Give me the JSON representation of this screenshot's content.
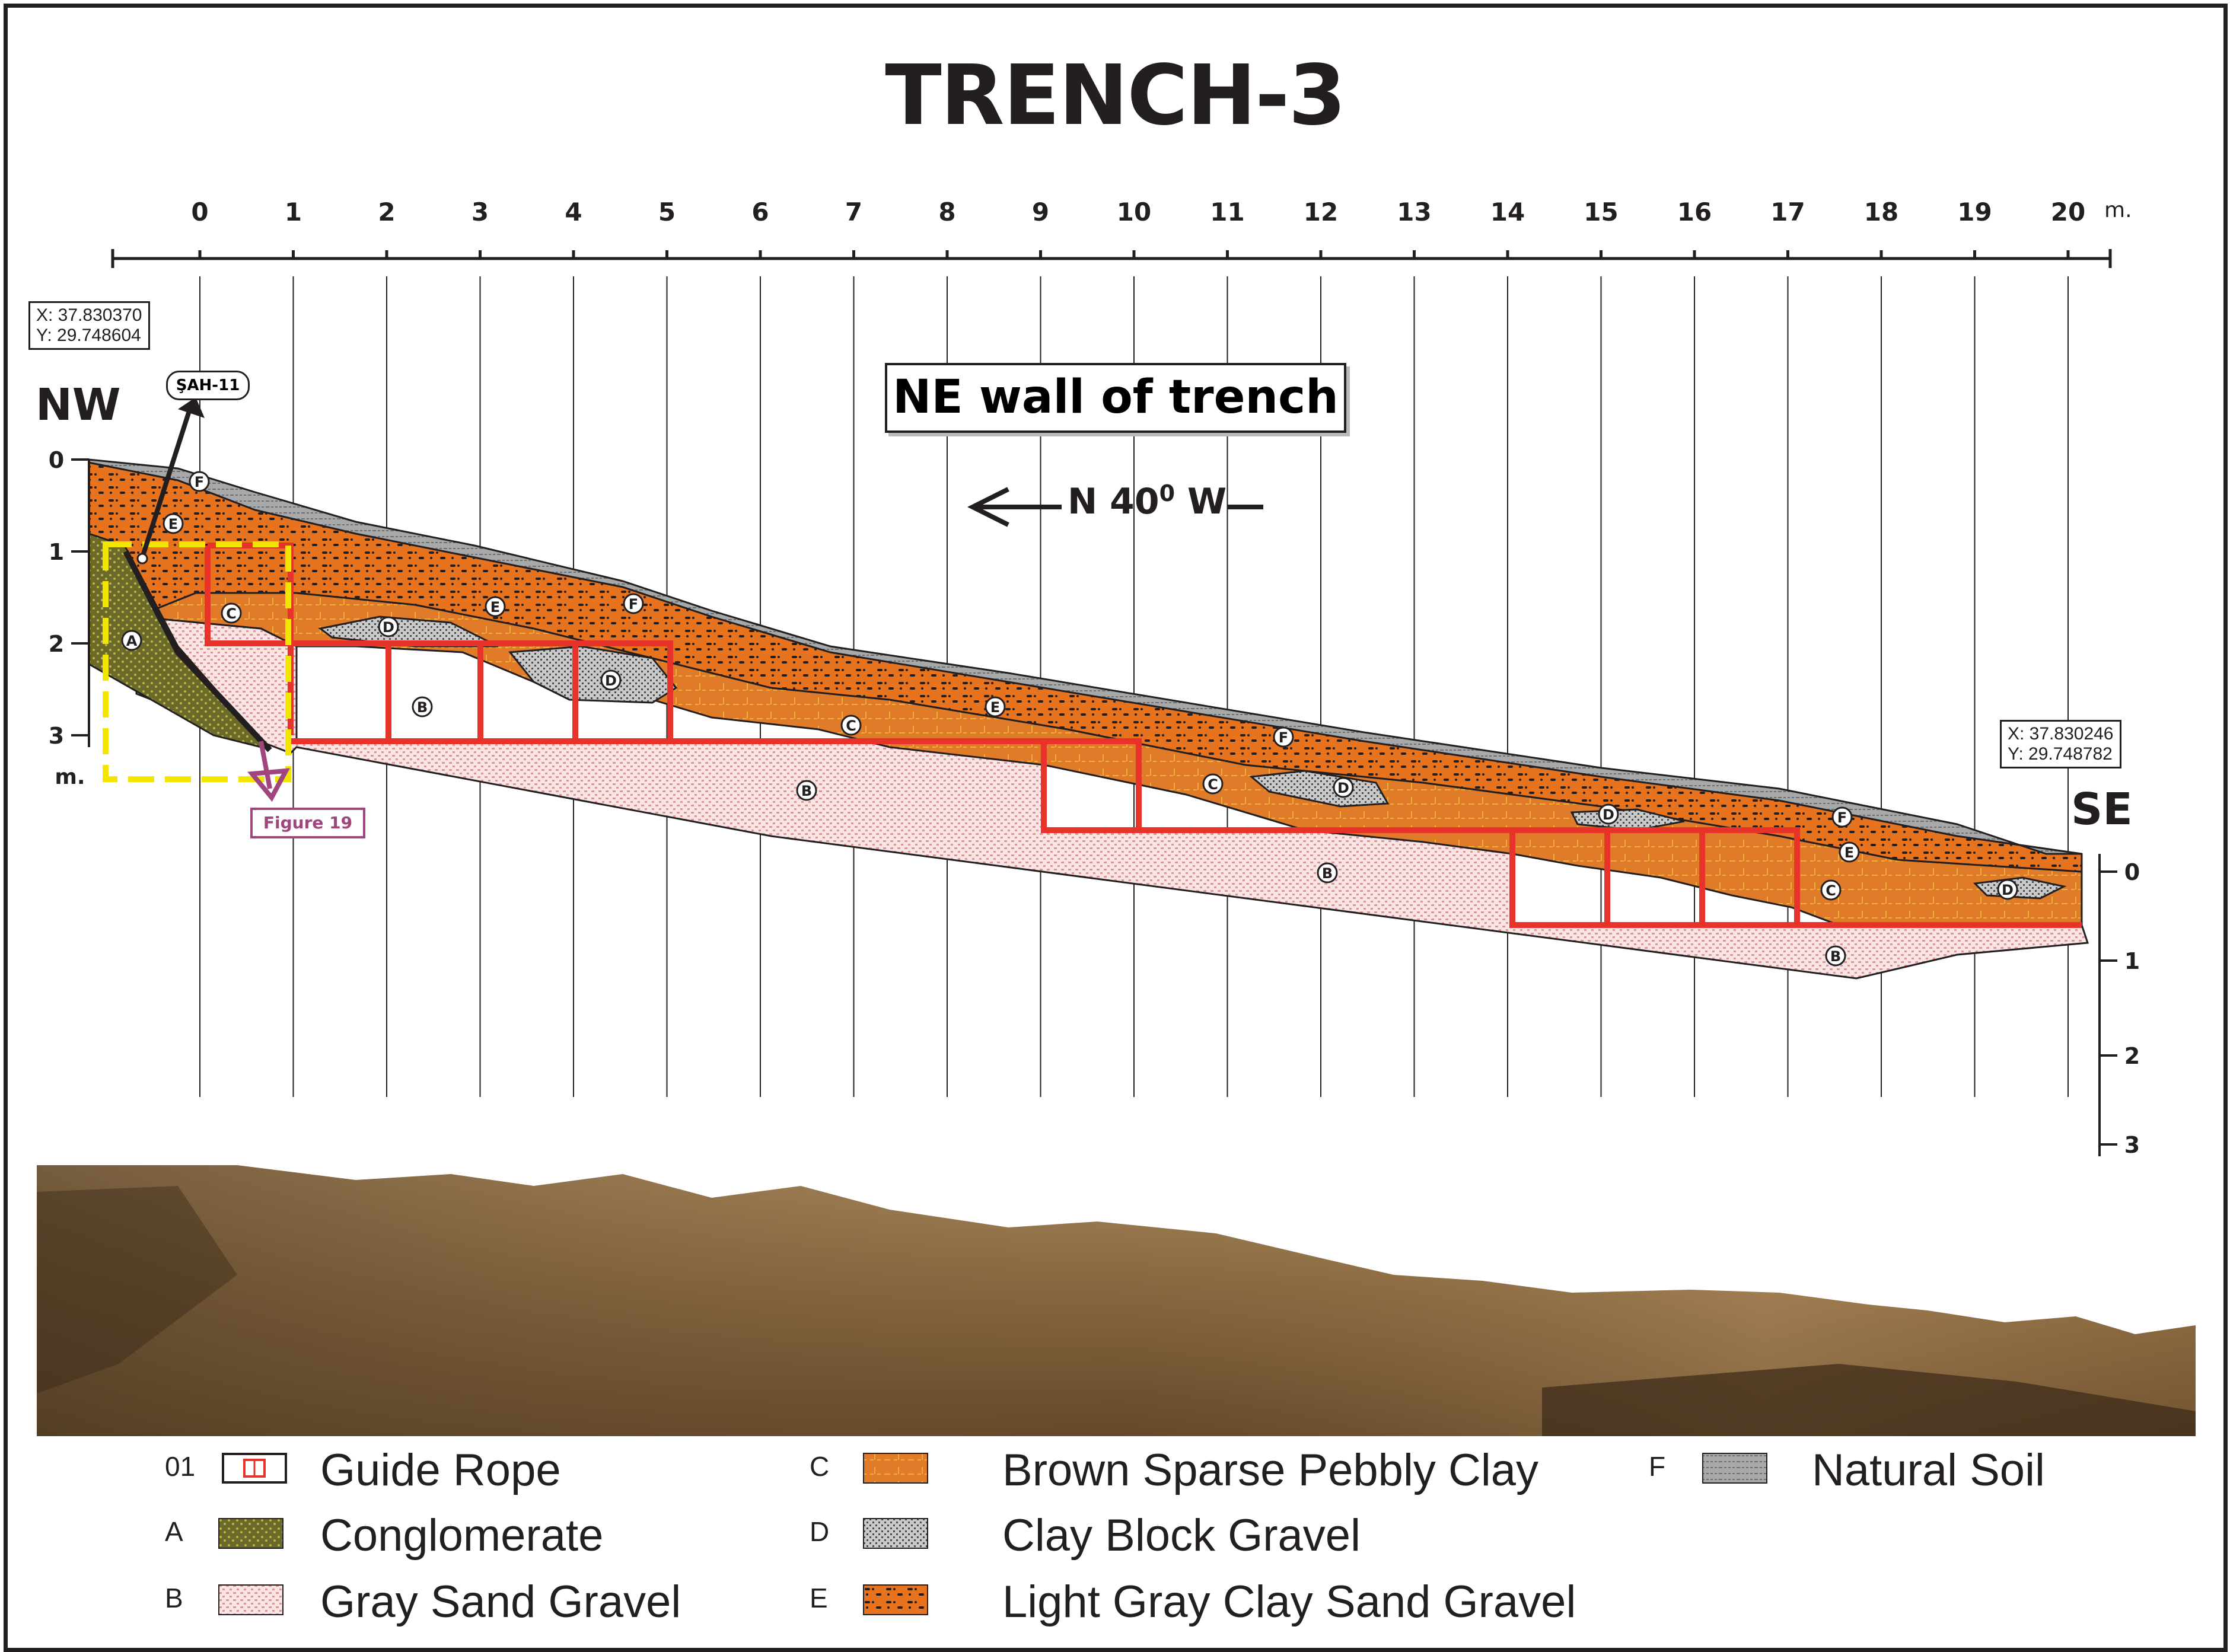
{
  "title": "TRENCH-3",
  "top_scale": {
    "ticks": [
      "0",
      "1",
      "2",
      "3",
      "4",
      "5",
      "6",
      "7",
      "8",
      "9",
      "10",
      "11",
      "12",
      "13",
      "14",
      "15",
      "16",
      "17",
      "18",
      "19",
      "20"
    ],
    "unit": "m."
  },
  "left_scale": {
    "ticks": [
      "0",
      "1",
      "2",
      "3"
    ],
    "unit": "m."
  },
  "right_scale": {
    "ticks": [
      "0",
      "1",
      "2",
      "3"
    ],
    "unit": "m."
  },
  "coords_nw": {
    "x": "X: 37.830370",
    "y": "Y: 29.748604"
  },
  "coords_se": {
    "x": "X: 37.830246",
    "y": "Y: 29.748782"
  },
  "direction_nw": "NW",
  "direction_se": "SE",
  "wall_label": "NE wall of trench",
  "bearing": {
    "text": "N 40",
    "sup": "0",
    "suffix": " W"
  },
  "well_tag": "ŞAH-11",
  "figure_tag": "Figure 19",
  "unit_labels": [
    {
      "code": "F"
    },
    {
      "code": "E"
    },
    {
      "code": "C"
    },
    {
      "code": "A"
    },
    {
      "code": "D"
    },
    {
      "code": "E"
    },
    {
      "code": "F"
    },
    {
      "code": "B"
    },
    {
      "code": "D"
    },
    {
      "code": "C"
    },
    {
      "code": "E"
    },
    {
      "code": "F"
    },
    {
      "code": "C"
    },
    {
      "code": "D"
    },
    {
      "code": "B"
    },
    {
      "code": "D"
    },
    {
      "code": "B"
    },
    {
      "code": "F"
    },
    {
      "code": "E"
    },
    {
      "code": "C"
    },
    {
      "code": "D"
    },
    {
      "code": "B"
    }
  ],
  "colors": {
    "outline": "#231f20",
    "guide_rope": "#e8332a",
    "conglomerate": "#6b6a2a",
    "gray_sand_gravel": "#f7c6c8",
    "brown_clay": "#e07b2a",
    "clay_block_gravel": "#9a9a9a",
    "light_gray_clay": "#e8731f",
    "natural_soil": "#a7a8aa",
    "figure_tag": "#a0457e",
    "frame_box": "#f2e600"
  },
  "legend": [
    {
      "code": "01",
      "label": "Guide Rope",
      "swatch": "guide-rope"
    },
    {
      "code": "A",
      "label": "Conglomerate",
      "swatch": "conglomerate"
    },
    {
      "code": "B",
      "label": "Gray Sand Gravel",
      "swatch": "gray-sand-gravel"
    },
    {
      "code": "C",
      "label": "Brown Sparse Pebbly Clay",
      "swatch": "brown-clay"
    },
    {
      "code": "D",
      "label": "Clay Block Gravel",
      "swatch": "clay-block-gravel"
    },
    {
      "code": "E",
      "label": "Light Gray Clay Sand Gravel",
      "swatch": "light-gray-clay"
    },
    {
      "code": "F",
      "label": "Natural Soil",
      "swatch": "natural-soil"
    }
  ]
}
